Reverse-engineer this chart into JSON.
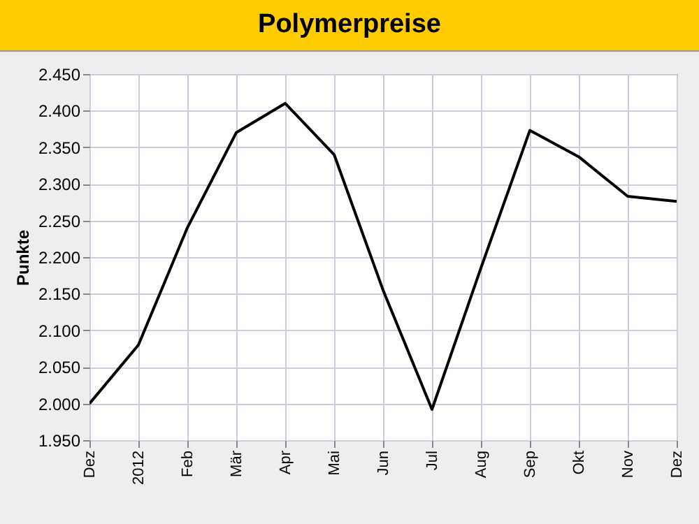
{
  "chart_data": {
    "type": "line",
    "title": "Polymerpreise",
    "ylabel": "Punkte",
    "categories": [
      "Dez",
      "2012",
      "Feb",
      "Mär",
      "Apr",
      "Mai",
      "Jun",
      "Jul",
      "Aug",
      "Sep",
      "Okt",
      "Nov",
      "Dez"
    ],
    "series": [
      {
        "color": "#000000",
        "values": [
          2000,
          2080,
          2240,
          2370,
          2410,
          2340,
          2155,
          1992,
          2185,
          2373,
          2337,
          2283,
          2276
        ]
      }
    ],
    "ylim": [
      1950,
      2450
    ],
    "yticks": [
      {
        "value": 1950,
        "label": "1.950"
      },
      {
        "value": 2000,
        "label": "2.000"
      },
      {
        "value": 2050,
        "label": "2.050"
      },
      {
        "value": 2100,
        "label": "2.100"
      },
      {
        "value": 2150,
        "label": "2.150"
      },
      {
        "value": 2200,
        "label": "2.200"
      },
      {
        "value": 2250,
        "label": "2.250"
      },
      {
        "value": 2300,
        "label": "2.300"
      },
      {
        "value": 2350,
        "label": "2.350"
      },
      {
        "value": 2400,
        "label": "2.400"
      },
      {
        "value": 2450,
        "label": "2.450"
      }
    ],
    "grid": true,
    "marker": "none",
    "line_style": "solid"
  }
}
